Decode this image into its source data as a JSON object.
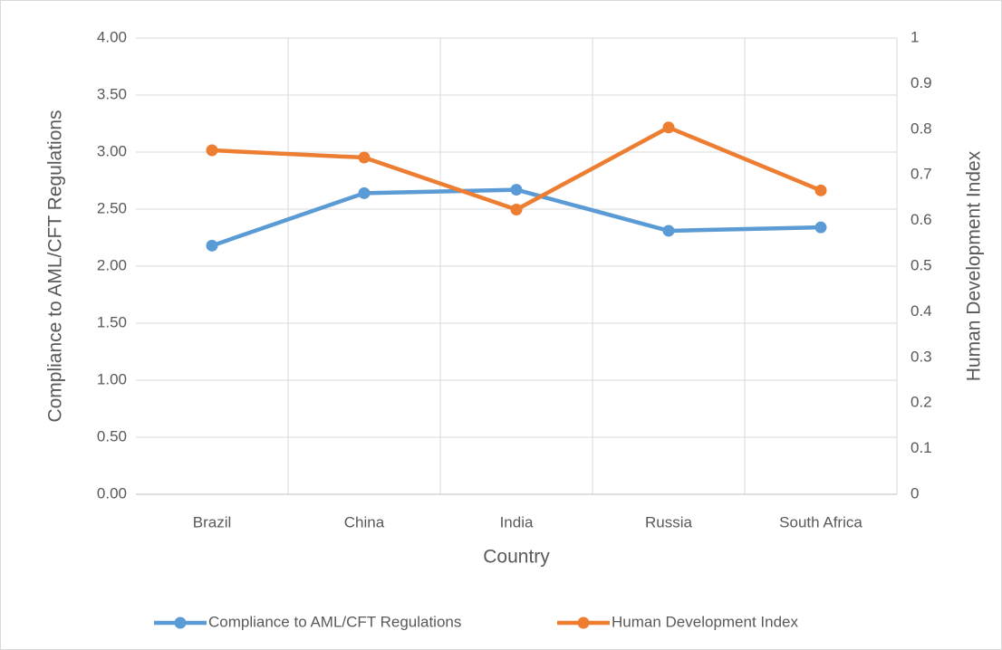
{
  "chart_data": {
    "type": "line",
    "categories": [
      "Brazil",
      "China",
      "India",
      "Russia",
      "South Africa"
    ],
    "x_label": "Country",
    "y_label": "Compliance to AML/CFT Regulations",
    "y2_label": "Human Development Index",
    "series": [
      {
        "name": "Compliance to AML/CFT Regulations",
        "color": "#5b9bd5",
        "values": [
          2.18,
          2.64,
          2.67,
          2.31,
          2.34
        ]
      },
      {
        "name": "Human Development Index",
        "color": "#ed7d31",
        "axis": "y2",
        "values": [
          0.754,
          0.738,
          0.624,
          0.804,
          0.666
        ]
      }
    ],
    "ylim": [
      0,
      4
    ],
    "yticks": [
      {
        "value": 0,
        "label": "0.00"
      },
      {
        "value": 0.5,
        "label": "0.50"
      },
      {
        "value": 1,
        "label": "1.00"
      },
      {
        "value": 1.5,
        "label": "1.50"
      },
      {
        "value": 2,
        "label": "2.00"
      },
      {
        "value": 2.5,
        "label": "2.50"
      },
      {
        "value": 3,
        "label": "3.00"
      },
      {
        "value": 3.5,
        "label": "3.50"
      },
      {
        "value": 4,
        "label": "4.00"
      }
    ],
    "y2lim": [
      0,
      1
    ],
    "y2ticks": [
      0,
      0.1,
      0.2,
      0.3,
      0.4,
      0.5,
      0.6,
      0.7,
      0.8,
      0.9,
      1
    ],
    "grid": true,
    "legend": "bottom"
  }
}
